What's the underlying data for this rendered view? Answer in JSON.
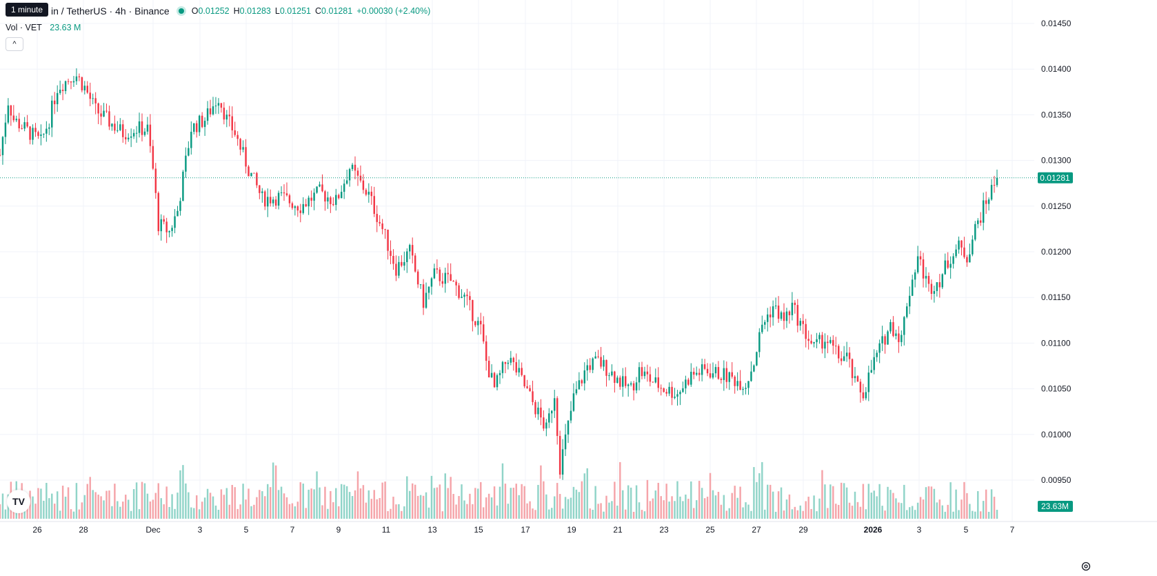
{
  "header": {
    "tooltip": "1 minute",
    "title": "in / TetherUS · 4h · Binance",
    "ohlc": [
      {
        "key": "O",
        "value": "0.01252"
      },
      {
        "key": "H",
        "value": "0.01283"
      },
      {
        "key": "L",
        "value": "0.01251"
      },
      {
        "key": "C",
        "value": "0.01281"
      }
    ],
    "change": "+0.00030 (+2.40%)"
  },
  "volume": {
    "label": "Vol · VET",
    "value": "23.63 M"
  },
  "collapse_glyph": "^",
  "logo": "TV",
  "colors": {
    "up": "#089981",
    "down": "#f23645",
    "up_volume": "#90d4c8",
    "down_volume": "#f5a4a9",
    "grid": "#f0f3fa",
    "axis_text": "#131722"
  },
  "chart_data": {
    "type": "candlestick",
    "price_axis": {
      "ticks": [
        "0.01450",
        "0.01400",
        "0.01350",
        "0.01300",
        "0.01250",
        "0.01200",
        "0.01150",
        "0.01100",
        "0.01050",
        "0.01000",
        "0.00950"
      ],
      "ylim": [
        0.00914,
        0.01474
      ],
      "last_price_label": "0.01281",
      "volume_label": "23.63M"
    },
    "time_axis": {
      "ticks": [
        "26",
        "28",
        "Dec",
        "3",
        "5",
        "7",
        "9",
        "11",
        "13",
        "15",
        "17",
        "19",
        "21",
        "23",
        "25",
        "27",
        "29",
        "2026",
        "3",
        "5",
        "7"
      ],
      "bold_ticks": [
        "2026"
      ]
    },
    "keyframes": [
      [
        0,
        0.01306
      ],
      [
        6,
        0.01365
      ],
      [
        10,
        0.01345
      ],
      [
        18,
        0.01335
      ],
      [
        30,
        0.0132
      ],
      [
        36,
        0.01345
      ],
      [
        42,
        0.0138
      ],
      [
        55,
        0.01395
      ],
      [
        62,
        0.0138
      ],
      [
        70,
        0.01355
      ],
      [
        78,
        0.01345
      ],
      [
        90,
        0.0133
      ],
      [
        100,
        0.01335
      ],
      [
        108,
        0.01334
      ],
      [
        112,
        0.0129
      ],
      [
        116,
        0.0123
      ],
      [
        124,
        0.01222
      ],
      [
        130,
        0.01245
      ],
      [
        140,
        0.01335
      ],
      [
        150,
        0.01345
      ],
      [
        160,
        0.0137
      ],
      [
        166,
        0.01345
      ],
      [
        172,
        0.0133
      ],
      [
        182,
        0.0129
      ],
      [
        192,
        0.01258
      ],
      [
        205,
        0.0126
      ],
      [
        220,
        0.0125
      ],
      [
        234,
        0.01265
      ],
      [
        246,
        0.01255
      ],
      [
        256,
        0.01292
      ],
      [
        270,
        0.01262
      ],
      [
        280,
        0.01225
      ],
      [
        290,
        0.01182
      ],
      [
        300,
        0.012
      ],
      [
        310,
        0.01145
      ],
      [
        318,
        0.01175
      ],
      [
        330,
        0.01168
      ],
      [
        340,
        0.0115
      ],
      [
        352,
        0.01115
      ],
      [
        356,
        0.0108
      ],
      [
        362,
        0.0105
      ],
      [
        372,
        0.01085
      ],
      [
        380,
        0.01065
      ],
      [
        390,
        0.01035
      ],
      [
        400,
        0.01005
      ],
      [
        406,
        0.01045
      ],
      [
        410,
        0.00965
      ],
      [
        416,
        0.0101
      ],
      [
        420,
        0.0104
      ],
      [
        430,
        0.01075
      ],
      [
        438,
        0.0108
      ],
      [
        446,
        0.0107
      ],
      [
        456,
        0.01055
      ],
      [
        462,
        0.0105
      ],
      [
        468,
        0.0107
      ],
      [
        476,
        0.0106
      ],
      [
        486,
        0.0105
      ],
      [
        496,
        0.01045
      ],
      [
        506,
        0.01065
      ],
      [
        516,
        0.0107
      ],
      [
        530,
        0.01065
      ],
      [
        538,
        0.0106
      ],
      [
        546,
        0.01055
      ],
      [
        552,
        0.0108
      ],
      [
        558,
        0.0112
      ],
      [
        566,
        0.0114
      ],
      [
        574,
        0.01125
      ],
      [
        580,
        0.0114
      ],
      [
        588,
        0.01115
      ],
      [
        596,
        0.01095
      ],
      [
        604,
        0.01105
      ],
      [
        614,
        0.01085
      ],
      [
        620,
        0.01085
      ],
      [
        626,
        0.01055
      ],
      [
        632,
        0.01045
      ],
      [
        640,
        0.0108
      ],
      [
        652,
        0.0112
      ],
      [
        660,
        0.01105
      ],
      [
        664,
        0.01145
      ],
      [
        672,
        0.01195
      ],
      [
        680,
        0.0116
      ],
      [
        688,
        0.0117
      ],
      [
        696,
        0.01195
      ],
      [
        702,
        0.01205
      ],
      [
        708,
        0.01195
      ],
      [
        714,
        0.01225
      ],
      [
        722,
        0.01255
      ],
      [
        730,
        0.01281
      ]
    ],
    "volume_ylim": [
      0,
      1.0
    ]
  }
}
